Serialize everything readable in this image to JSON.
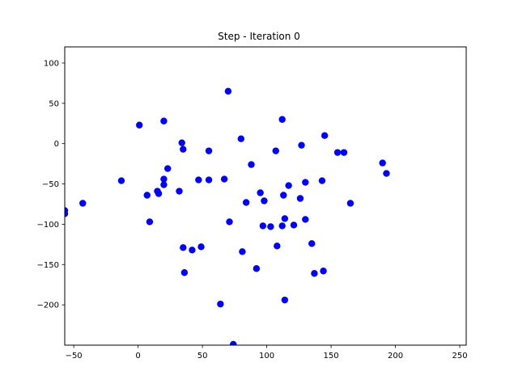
{
  "chart_data": {
    "type": "scatter",
    "title": "Step - Iteration 0",
    "xlabel": "",
    "ylabel": "",
    "xlim": [
      -57,
      255
    ],
    "ylim": [
      -250,
      120
    ],
    "x_ticks": [
      -50,
      0,
      50,
      100,
      150,
      200,
      250
    ],
    "y_ticks": [
      -200,
      -150,
      -100,
      -50,
      0,
      50,
      100
    ],
    "grid": false,
    "marker_color": "#0000ff",
    "points": [
      {
        "x": 1,
        "y": 23
      },
      {
        "x": 20,
        "y": 28
      },
      {
        "x": 70,
        "y": 65
      },
      {
        "x": 112,
        "y": 30
      },
      {
        "x": 34,
        "y": 1
      },
      {
        "x": 35,
        "y": -7
      },
      {
        "x": 55,
        "y": -9
      },
      {
        "x": 80,
        "y": 6
      },
      {
        "x": 107,
        "y": -9
      },
      {
        "x": 127,
        "y": -2
      },
      {
        "x": 145,
        "y": 10
      },
      {
        "x": 155,
        "y": -11
      },
      {
        "x": 160,
        "y": -11
      },
      {
        "x": 190,
        "y": -24
      },
      {
        "x": 193,
        "y": -37
      },
      {
        "x": 88,
        "y": -26
      },
      {
        "x": -13,
        "y": -46
      },
      {
        "x": 23,
        "y": -31
      },
      {
        "x": 20,
        "y": -44
      },
      {
        "x": 20,
        "y": -51
      },
      {
        "x": 47,
        "y": -45
      },
      {
        "x": 55,
        "y": -45
      },
      {
        "x": 67,
        "y": -44
      },
      {
        "x": 7,
        "y": -64
      },
      {
        "x": 15,
        "y": -59
      },
      {
        "x": 16,
        "y": -62
      },
      {
        "x": 32,
        "y": -59
      },
      {
        "x": 95,
        "y": -61
      },
      {
        "x": 98,
        "y": -71
      },
      {
        "x": 84,
        "y": -73
      },
      {
        "x": 113,
        "y": -64
      },
      {
        "x": 117,
        "y": -52
      },
      {
        "x": 130,
        "y": -48
      },
      {
        "x": 143,
        "y": -46
      },
      {
        "x": 126,
        "y": -68
      },
      {
        "x": 165,
        "y": -74
      },
      {
        "x": -43,
        "y": -74
      },
      {
        "x": -57,
        "y": -83
      },
      {
        "x": -57,
        "y": -87
      },
      {
        "x": 9,
        "y": -97
      },
      {
        "x": 71,
        "y": -97
      },
      {
        "x": 97,
        "y": -102
      },
      {
        "x": 103,
        "y": -103
      },
      {
        "x": 112,
        "y": -102
      },
      {
        "x": 114,
        "y": -93
      },
      {
        "x": 121,
        "y": -101
      },
      {
        "x": 130,
        "y": -94
      },
      {
        "x": 35,
        "y": -129
      },
      {
        "x": 42,
        "y": -132
      },
      {
        "x": 49,
        "y": -128
      },
      {
        "x": 36,
        "y": -160
      },
      {
        "x": 81,
        "y": -134
      },
      {
        "x": 92,
        "y": -155
      },
      {
        "x": 108,
        "y": -127
      },
      {
        "x": 135,
        "y": -124
      },
      {
        "x": 137,
        "y": -161
      },
      {
        "x": 144,
        "y": -158
      },
      {
        "x": 64,
        "y": -199
      },
      {
        "x": 114,
        "y": -194
      },
      {
        "x": 74,
        "y": -249
      }
    ]
  }
}
